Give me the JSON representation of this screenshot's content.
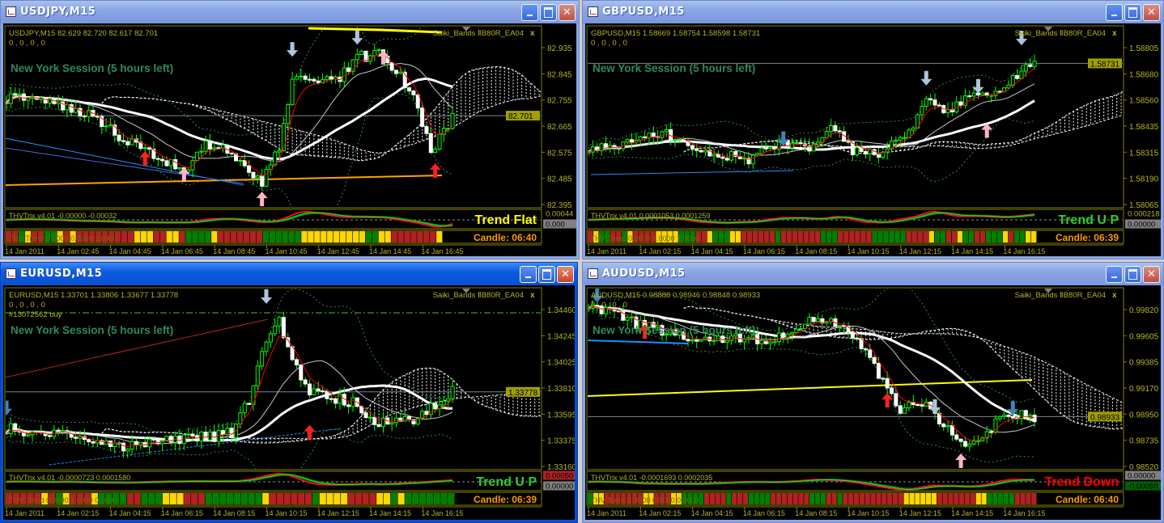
{
  "colors": {
    "axis": "#808000",
    "text": "#b4b428",
    "bull": "#00ff00",
    "bear": "#ffffff",
    "ma_fast": "#ff0000",
    "session": "#2e8b57",
    "candle_timer": "#ff9900",
    "trend_red": "#b22222",
    "trend_green": "#008000",
    "trend_yellow": "#ffd700"
  },
  "windows": [
    {
      "title": "USDJPY,M15",
      "active": false,
      "info_line": "USDJPY,M15  82.629 82.720 82.617 82.701",
      "info_line2": "0 , 0 , 0 , 0",
      "extra_line": "",
      "indicator_name": "Saiki_Bands ⅡB80R_EA04",
      "indicator_close": "x",
      "session_text": "New York Session (5 hours left)",
      "price_labels": [
        "82.935",
        "82.845",
        "82.755",
        "82.665",
        "82.575",
        "82.485",
        "82.395"
      ],
      "current_price": "82.701",
      "trix_label": "THVTrix v4.01 -0.00000 -0.00032",
      "trix_axis_values": [
        "0.00044",
        "0.000"
      ],
      "trix_box_colors": [
        "#000000",
        "#808080"
      ],
      "trend_label": "THV Trend 0.0000 0.0000 1.0000",
      "trend_text": "Trend Flat",
      "trend_color": "#ffff00",
      "candle_timer": "Candle:  06:40",
      "time_labels": [
        "14 Jan 2011",
        "14 Jan 02:45",
        "14 Jan 04:45",
        "14 Jan 06:45",
        "14 Jan 08:45",
        "14 Jan 10:45",
        "14 Jan 12:45",
        "14 Jan 14:45",
        "14 Jan 16:45"
      ],
      "trend_bars": "RRGYRRGGYRYRRRRRRRRRYYYRRYYRGGGGYRRRRRRRGGGGGGYYYYYYYYYYGGYYRRRRRRRY",
      "price_path": [
        [
          0,
          82.762
        ],
        [
          9,
          82.748
        ],
        [
          19,
          82.707
        ],
        [
          31,
          82.581
        ],
        [
          41,
          82.512
        ],
        [
          46,
          82.595
        ],
        [
          50,
          82.6
        ],
        [
          56,
          82.512
        ],
        [
          59,
          82.47
        ],
        [
          63,
          82.595
        ],
        [
          66,
          82.818
        ],
        [
          69,
          82.832
        ],
        [
          76,
          82.818
        ],
        [
          81,
          82.902
        ],
        [
          87,
          82.916
        ],
        [
          91,
          82.832
        ],
        [
          94,
          82.762
        ],
        [
          98,
          82.581
        ],
        [
          103,
          82.693
        ]
      ],
      "signals": [
        {
          "bar": 66,
          "price": 82.929,
          "dir": "down",
          "color": "#b0c4de"
        },
        {
          "bar": 81,
          "price": 82.971,
          "dir": "down",
          "color": "#b0c4de"
        },
        {
          "bar": 87,
          "price": 82.902,
          "dir": "up",
          "color": "#ffb6c1"
        },
        {
          "bar": 32,
          "price": 82.554,
          "dir": "up",
          "color": "#ff2020"
        },
        {
          "bar": 99,
          "price": 82.512,
          "dir": "up",
          "color": "#ff2020"
        },
        {
          "bar": 41,
          "price": 82.498,
          "dir": "up",
          "color": "#ffb6c1"
        },
        {
          "bar": 59,
          "price": 82.414,
          "dir": "up",
          "color": "#ffb6c1"
        }
      ]
    },
    {
      "title": "GBPUSD,M15",
      "active": false,
      "info_line": "GBPUSD,M15  1.58669 1.58754 1.58598 1.58731",
      "info_line2": "0 , 0 , 0 , 0",
      "extra_line": "",
      "indicator_name": "Saiki_Bands ⅡB80R_EA04",
      "indicator_close": "x",
      "session_text": "New York Session (5 hours left)",
      "price_labels": [
        "1.58805",
        "1.58680",
        "1.58560",
        "1.58435",
        "1.58315",
        "1.58190",
        "1.58065"
      ],
      "current_price": "1.58731",
      "trix_label": "THVTrix v4.01 0.0001053 0.0001259",
      "trix_axis_values": [
        "0.000218",
        "0.00000"
      ],
      "trix_box_colors": [
        "#000000",
        "#808080"
      ],
      "trend_label": "THV Trend 0.0000 0.0000 1.0000",
      "trend_text": "Trend U P",
      "trend_color": "#32cd32",
      "candle_timer": "Candle:  06:39",
      "time_labels": [
        "14 Jan 2011",
        "14 Jan 02:15",
        "14 Jan 04:15",
        "14 Jan 06:15",
        "14 Jan 08:15",
        "14 Jan 10:15",
        "14 Jan 12:15",
        "14 Jan 14:15",
        "14 Jan 16:15"
      ],
      "trend_bars": "RYGGRRGYRRRRYYYYGGGRRYGGGYYRRRRRRGRRRRRRRGGGRRRRRRGGGGGGRRRRYGGRRYGGRRGGGYRGGYY",
      "price_path": [
        [
          0,
          1.58338
        ],
        [
          11,
          1.58357
        ],
        [
          17,
          1.58414
        ],
        [
          24,
          1.58319
        ],
        [
          37,
          1.58281
        ],
        [
          44,
          1.58357
        ],
        [
          52,
          1.58338
        ],
        [
          56,
          1.58452
        ],
        [
          61,
          1.58319
        ],
        [
          67,
          1.583
        ],
        [
          74,
          1.58414
        ],
        [
          78,
          1.58566
        ],
        [
          83,
          1.58509
        ],
        [
          89,
          1.58604
        ],
        [
          94,
          1.58604
        ],
        [
          100,
          1.58699
        ],
        [
          103,
          1.58718
        ]
      ],
      "signals": [
        {
          "bar": 100,
          "price": 1.58851,
          "dir": "down",
          "color": "#b0c4de"
        },
        {
          "bar": 78,
          "price": 1.58661,
          "dir": "down",
          "color": "#b0c4de"
        },
        {
          "bar": 90,
          "price": 1.58623,
          "dir": "down",
          "color": "#b0c4de"
        },
        {
          "bar": 45,
          "price": 1.58376,
          "dir": "down",
          "color": "#4682b4"
        },
        {
          "bar": 92,
          "price": 1.58414,
          "dir": "up",
          "color": "#ffb6c1"
        }
      ]
    },
    {
      "title": "EURUSD,M15",
      "active": true,
      "info_line": "EURUSD,M15  1.33701 1.33806 1.33677 1.33778",
      "info_line2": "0 , 0 , 0 , 0",
      "extra_line": "#13072562 buy",
      "indicator_name": "Saiki_Bands ⅡB80R_EA04",
      "indicator_close": "x",
      "session_text": "New York Session (5 hours left)",
      "price_labels": [
        "1.34460",
        "1.34245",
        "1.34025",
        "1.33810",
        "1.33595",
        "1.33375",
        "1.33160"
      ],
      "current_price": "1.33778",
      "trix_label": "THVTrix v4.01 -0.0000723 0.0001580",
      "trix_axis_values": [
        "0.00050",
        "0.00000"
      ],
      "trix_box_colors": [
        "#b22222",
        "#808080"
      ],
      "trend_label": "THV Trend 0.0000 1.0000 0.0000",
      "trend_text": "Trend U P",
      "trend_color": "#32cd32",
      "candle_timer": "Candle:  06:39",
      "time_labels": [
        "14 Jan 2011",
        "14 Jan 02:15",
        "14 Jan 04:15",
        "14 Jan 06:15",
        "14 Jan 08:15",
        "14 Jan 10:15",
        "14 Jan 12:15",
        "14 Jan 14:15",
        "14 Jan 16:15"
      ],
      "trend_bars": "RRRRRYRGYRRRYGGGGRRGGGYYYRRRGGGGGGGGYRRRRRRGYYYYRRRRYYGYGGGGGGG",
      "price_path": [
        [
          0,
          1.33477
        ],
        [
          15,
          1.33409
        ],
        [
          26,
          1.33308
        ],
        [
          37,
          1.33376
        ],
        [
          48,
          1.33409
        ],
        [
          52,
          1.33443
        ],
        [
          56,
          1.33712
        ],
        [
          59,
          1.34116
        ],
        [
          63,
          1.34352
        ],
        [
          67,
          1.33982
        ],
        [
          70,
          1.3378
        ],
        [
          74,
          1.33746
        ],
        [
          81,
          1.33679
        ],
        [
          85,
          1.3351
        ],
        [
          93,
          1.33544
        ],
        [
          96,
          1.33578
        ],
        [
          101,
          1.33746
        ],
        [
          103,
          1.3378
        ]
      ],
      "signals": [
        {
          "bar": 60,
          "price": 1.34568,
          "dir": "down",
          "color": "#b0c4de"
        },
        {
          "bar": 70,
          "price": 1.33443,
          "dir": "up",
          "color": "#ff2020"
        },
        {
          "bar": 0,
          "price": 1.33645,
          "dir": "down",
          "color": "#4682b4"
        }
      ]
    },
    {
      "title": "AUDUSD,M15",
      "active": false,
      "info_line": "AUDUSD,M15  0.98888 0.98946 0.98848 0.98933",
      "info_line2": "0 , 0 , 0 , 0",
      "extra_line": "",
      "indicator_name": "Saiki_Bands ⅡB80R_EA04",
      "indicator_close": "x",
      "session_text": "New York Session (5 hours left)",
      "price_labels": [
        "0.99820",
        "0.99605",
        "0.99385",
        "0.99170",
        "0.98950",
        "0.98735",
        "0.98520"
      ],
      "current_price": "0.98933",
      "trix_label": "THVTrix v4.01 -0.0001693 0.0002035",
      "trix_axis_values": [
        "0.00000",
        "-0.00050"
      ],
      "trix_box_colors": [
        "#808080",
        "#006400"
      ],
      "trend_label": "THV Trend 1.0000 0.0000 0.0000",
      "trend_text": "Trend Down",
      "trend_color": "#ff0000",
      "candle_timer": "Candle:  06:40",
      "time_labels": [
        "14 Jan 2011",
        "14 Jan 02:15",
        "14 Jan 04:15",
        "14 Jan 06:15",
        "14 Jan 08:15",
        "14 Jan 10:15",
        "14 Jan 12:15",
        "14 Jan 14:15",
        "14 Jan 16:15"
      ],
      "trend_bars": "GYYRRRRRRRYYRRRYYGGGGRRRRGRRRGGGGRRRRRRRGGGRRGRRRRRRRRRRRYYYYYYRRRRRRRYYGGGGGRRRR",
      "price_path": [
        [
          0,
          0.99874
        ],
        [
          11,
          0.99706
        ],
        [
          26,
          0.99572
        ],
        [
          43,
          0.99572
        ],
        [
          52,
          0.9974
        ],
        [
          59,
          0.99673
        ],
        [
          63,
          0.99505
        ],
        [
          69,
          0.9917
        ],
        [
          72,
          0.99002
        ],
        [
          78,
          0.99036
        ],
        [
          83,
          0.98835
        ],
        [
          87,
          0.98701
        ],
        [
          91,
          0.98734
        ],
        [
          94,
          0.98902
        ],
        [
          100,
          0.98969
        ],
        [
          103,
          0.98935
        ]
      ],
      "signals": [
        {
          "bar": 2,
          "price": 0.99941,
          "dir": "down",
          "color": "#4682b4"
        },
        {
          "bar": 13,
          "price": 0.99639,
          "dir": "up",
          "color": "#ff2020"
        },
        {
          "bar": 69,
          "price": 0.99069,
          "dir": "up",
          "color": "#ff2020"
        },
        {
          "bar": 80,
          "price": 0.99016,
          "dir": "down",
          "color": "#b0c4de"
        },
        {
          "bar": 86,
          "price": 0.98567,
          "dir": "up",
          "color": "#ffb6c1"
        },
        {
          "bar": 98,
          "price": 0.99002,
          "dir": "down",
          "color": "#4682b4"
        }
      ]
    }
  ]
}
